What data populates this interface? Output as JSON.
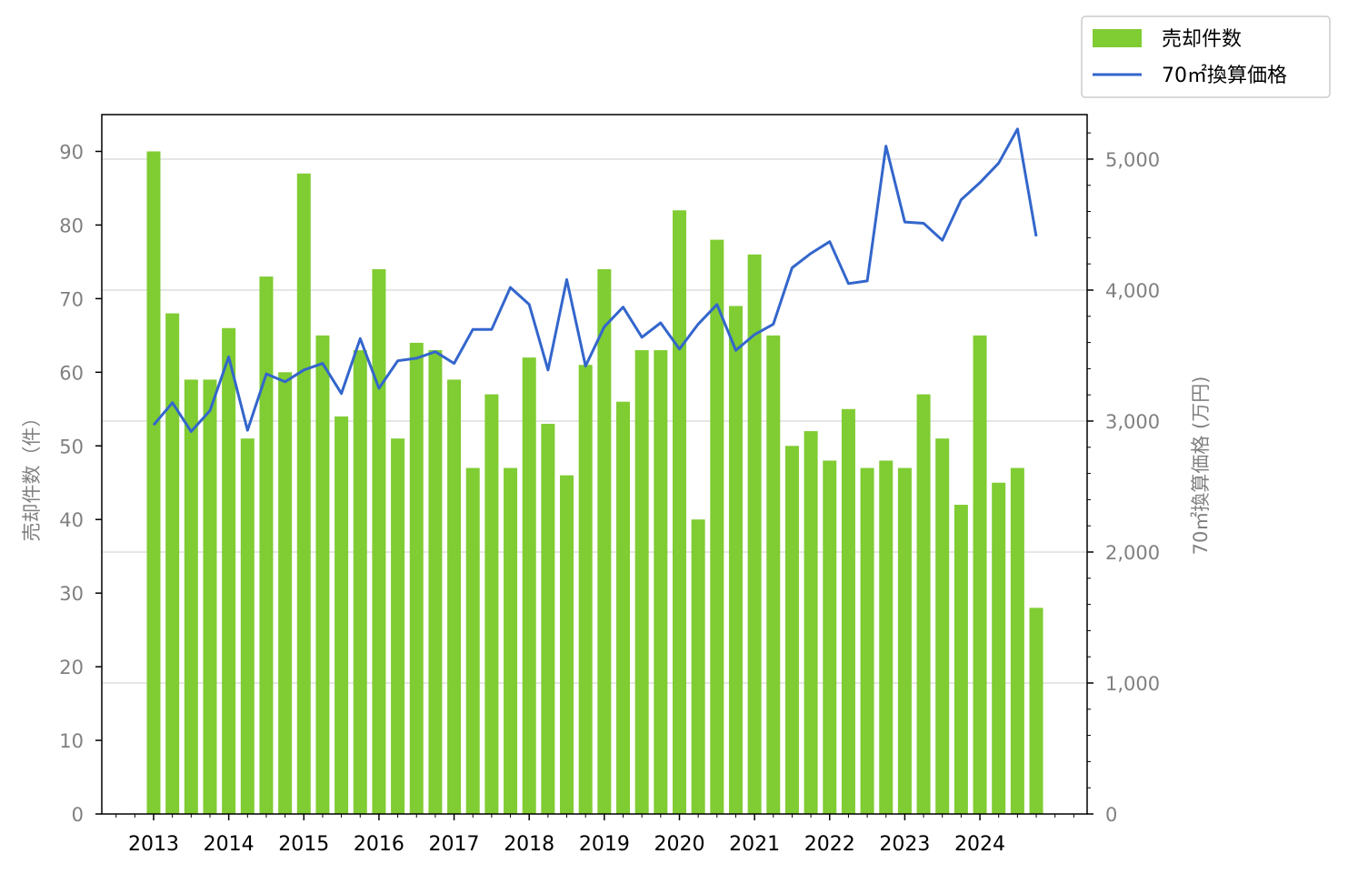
{
  "chart_data": {
    "type": "bar",
    "x_tick_labels": [
      "2013",
      "2014",
      "2015",
      "2016",
      "2017",
      "2018",
      "2019",
      "2020",
      "2021",
      "2022",
      "2023",
      "2024"
    ],
    "left_axis": {
      "label": "売却件数（件）",
      "ylim": [
        0,
        95
      ],
      "ticks": [
        "0",
        "10",
        "20",
        "30",
        "40",
        "50",
        "60",
        "70",
        "80",
        "90"
      ]
    },
    "right_axis": {
      "label": "70㎡換算価格 (万円)",
      "ylim": [
        0,
        5340
      ],
      "ticks": [
        "0",
        "1,000",
        "2,000",
        "3,000",
        "4,000",
        "5,000"
      ]
    },
    "grid": "horizontal, right axis",
    "legend_placement": "top-right, outside plot",
    "series": [
      {
        "name": "売却件数",
        "type": "bar",
        "axis": "left",
        "color": "#80cc33",
        "values": [
          90,
          68,
          59,
          59,
          66,
          51,
          73,
          60,
          87,
          65,
          54,
          63,
          74,
          51,
          64,
          63,
          59,
          47,
          57,
          47,
          62,
          53,
          46,
          61,
          74,
          56,
          63,
          63,
          82,
          40,
          78,
          69,
          76,
          65,
          50,
          52,
          48,
          55,
          47,
          48,
          47,
          57,
          51,
          42,
          65,
          45,
          47,
          28
        ]
      },
      {
        "name": "70㎡換算価格",
        "type": "line",
        "axis": "right",
        "color": "#3366cc",
        "values": [
          2970,
          3140,
          2920,
          3080,
          3490,
          2930,
          3360,
          3300,
          3390,
          3440,
          3210,
          3630,
          3250,
          3460,
          3480,
          3530,
          3440,
          3700,
          3700,
          4020,
          3890,
          3390,
          4080,
          3420,
          3720,
          3870,
          3640,
          3750,
          3550,
          3740,
          3890,
          3540,
          3660,
          3740,
          4170,
          4280,
          4370,
          4050,
          4070,
          5100,
          4520,
          4510,
          4380,
          4690,
          4820,
          4970,
          5230,
          4410
        ]
      }
    ]
  }
}
